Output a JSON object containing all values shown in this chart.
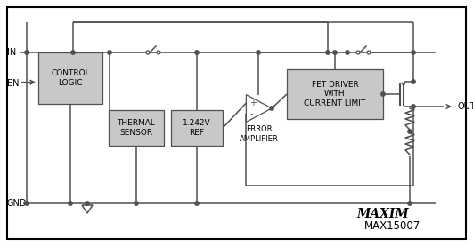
{
  "background_color": "#ffffff",
  "line_color": "#505050",
  "box_fill": "#c8c8c8",
  "text_color": "#000000",
  "fig_width": 5.31,
  "fig_height": 2.77,
  "dpi": 100,
  "labels": {
    "IN": "IN",
    "EN": "EN",
    "GND": "GND",
    "OUT": "OUT",
    "control_logic": "CONTROL\nLOGIC",
    "thermal_sensor": "THERMAL\nSENSOR",
    "ref": "1.242V\nREF",
    "error_amp": "ERROR\nAMPLIFIER",
    "fet_driver": "FET DRIVER\nWITH\nCURRENT LIMIT",
    "maxim": "MAXIM",
    "model": "MAX15007"
  }
}
